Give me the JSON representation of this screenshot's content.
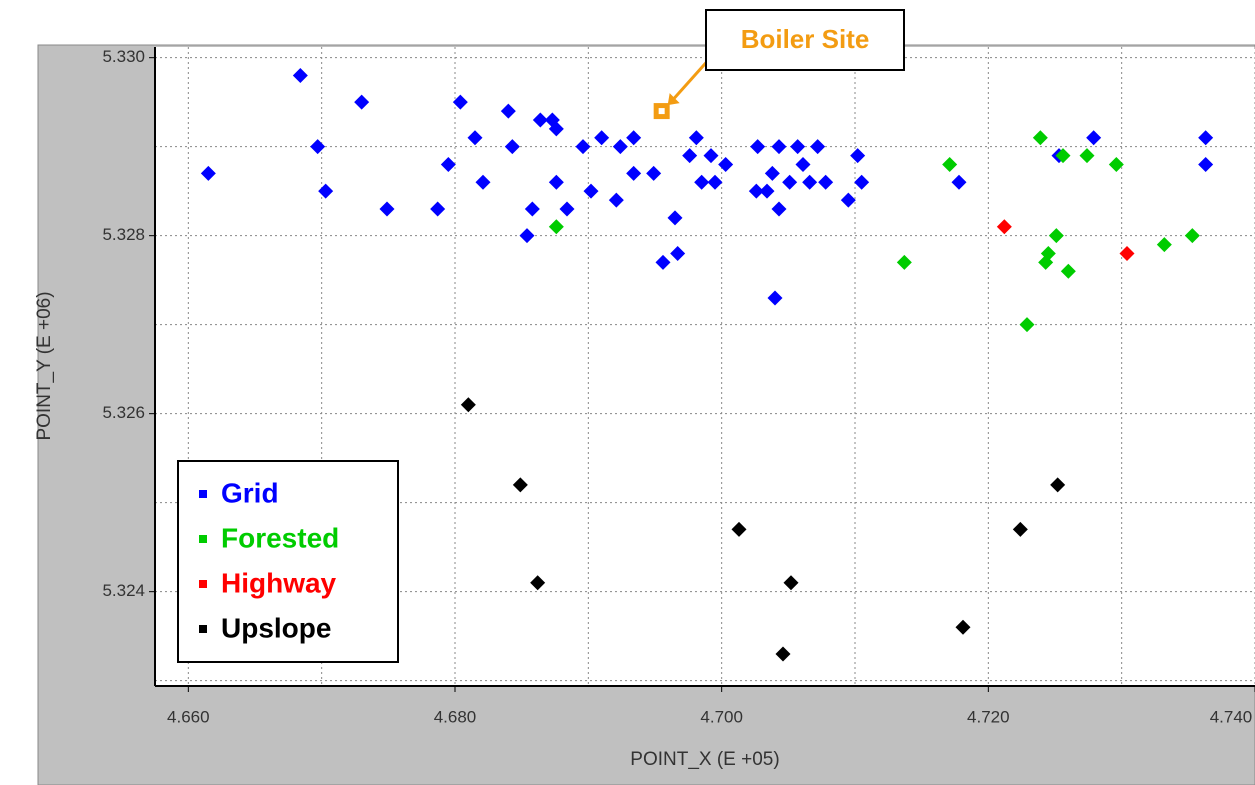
{
  "chart_data": {
    "type": "scatter",
    "xlabel": "POINT_X (E +05)",
    "ylabel": "POINT_Y (E +06)",
    "xlim": [
      4.6575,
      4.74
    ],
    "ylim": [
      5.32294,
      5.33012
    ],
    "xticks": [
      {
        "value": 4.66,
        "label": "4.660"
      },
      {
        "value": 4.68,
        "label": "4.680"
      },
      {
        "value": 4.7,
        "label": "4.700"
      },
      {
        "value": 4.72,
        "label": "4.720"
      },
      {
        "value": 4.74,
        "label": "4.740"
      }
    ],
    "yticks": [
      {
        "value": 5.324,
        "label": "5.324"
      },
      {
        "value": 5.326,
        "label": "5.326"
      },
      {
        "value": 5.328,
        "label": "5.328"
      },
      {
        "value": 5.33,
        "label": "5.330"
      }
    ],
    "x_minor_ticks": [
      4.67,
      4.69,
      4.71,
      4.73
    ],
    "y_minor_ticks": [
      5.323,
      5.325,
      5.327,
      5.329
    ],
    "grid": true,
    "legend": "lower left",
    "series": [
      {
        "name": "Grid",
        "color": "#0000ff",
        "x": [
          4.6615,
          4.6684,
          4.6697,
          4.6703,
          4.673,
          4.6749,
          4.6787,
          4.6795,
          4.6804,
          4.6815,
          4.6821,
          4.684,
          4.6843,
          4.6854,
          4.6858,
          4.6864,
          4.6873,
          4.6876,
          4.6876,
          4.6884,
          4.6896,
          4.6902,
          4.691,
          4.6921,
          4.6924,
          4.6934,
          4.6934,
          4.6949,
          4.6956,
          4.6965,
          4.6967,
          4.6976,
          4.6981,
          4.6985,
          4.6992,
          4.6995,
          4.7003,
          4.7027,
          4.7026,
          4.7034,
          4.704,
          4.7043,
          4.7038,
          4.7043,
          4.7051,
          4.7057,
          4.7061,
          4.7066,
          4.7072,
          4.7078,
          4.7095,
          4.7102,
          4.7105,
          4.7178,
          4.7253,
          4.7279,
          4.7363,
          4.7363
        ],
        "y": [
          5.3287,
          5.3298,
          5.329,
          5.3285,
          5.3295,
          5.3283,
          5.3283,
          5.3288,
          5.3295,
          5.3291,
          5.3286,
          5.3294,
          5.329,
          5.328,
          5.3283,
          5.3293,
          5.3293,
          5.3292,
          5.3286,
          5.3283,
          5.329,
          5.3285,
          5.3291,
          5.3284,
          5.329,
          5.3291,
          5.3287,
          5.3287,
          5.3277,
          5.3282,
          5.3278,
          5.3289,
          5.3291,
          5.3286,
          5.3289,
          5.3286,
          5.3288,
          5.329,
          5.3285,
          5.3285,
          5.3273,
          5.329,
          5.3287,
          5.3283,
          5.3286,
          5.329,
          5.3288,
          5.3286,
          5.329,
          5.3286,
          5.3284,
          5.3289,
          5.3286,
          5.3286,
          5.3289,
          5.3291,
          5.3291,
          5.3288
        ]
      },
      {
        "name": "Forested",
        "color": "#00cc00",
        "x": [
          4.6876,
          4.7171,
          4.7137,
          4.7239,
          4.7256,
          4.7274,
          4.7296,
          4.7251,
          4.7245,
          4.7243,
          4.726,
          4.7229,
          4.7332,
          4.7353
        ],
        "y": [
          5.3281,
          5.3288,
          5.3277,
          5.3291,
          5.3289,
          5.3289,
          5.3288,
          5.328,
          5.3278,
          5.3277,
          5.3276,
          5.327,
          5.3279,
          5.328
        ]
      },
      {
        "name": "Highway",
        "color": "#ff0000",
        "x": [
          4.7212,
          4.7304
        ],
        "y": [
          5.3281,
          5.3278
        ]
      },
      {
        "name": "Upslope",
        "color": "#000000",
        "x": [
          4.681,
          4.6849,
          4.6862,
          4.7013,
          4.7052,
          4.7046,
          4.7181,
          4.7224,
          4.7252
        ],
        "y": [
          5.3261,
          5.3252,
          5.3241,
          5.3247,
          5.3241,
          5.3233,
          5.3236,
          5.3247,
          5.3252
        ]
      }
    ],
    "annotations": [
      {
        "text": "Boiler Site",
        "x": 4.6955,
        "y": 5.3294,
        "color": "#f39c12"
      }
    ]
  }
}
